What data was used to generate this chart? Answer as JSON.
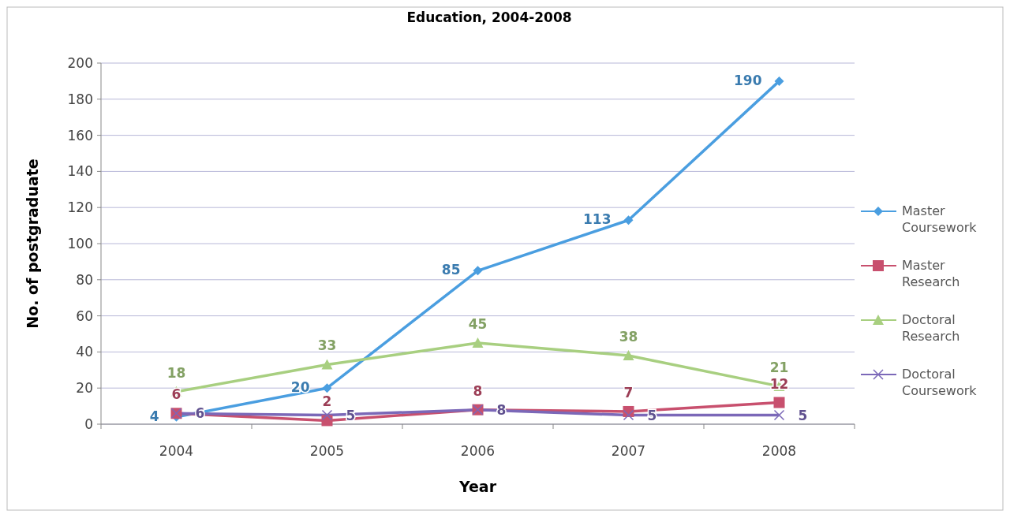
{
  "chart_data": {
    "type": "line",
    "title": "Education, 2004-2008",
    "xlabel": "Year",
    "ylabel": "No. of postgraduate",
    "categories": [
      "2004",
      "2005",
      "2006",
      "2007",
      "2008"
    ],
    "series": [
      {
        "name": "Master Coursework",
        "color": "#4a9ee0",
        "marker": "diamond",
        "values": [
          4,
          20,
          85,
          113,
          190
        ]
      },
      {
        "name": "Master Research",
        "color": "#c8506e",
        "marker": "square",
        "values": [
          6,
          2,
          8,
          7,
          12
        ]
      },
      {
        "name": "Doctoral Research",
        "color": "#a8cf80",
        "marker": "triangle",
        "values": [
          18,
          33,
          45,
          38,
          21
        ]
      },
      {
        "name": "Doctoral Coursework",
        "color": "#7b68b8",
        "marker": "cross",
        "values": [
          6,
          5,
          8,
          5,
          5
        ]
      }
    ],
    "ylim": [
      0,
      200
    ],
    "yticks": [
      0,
      20,
      40,
      60,
      80,
      100,
      120,
      140,
      160,
      180,
      200
    ],
    "grid": "y",
    "legend": "right",
    "data_labels": true
  }
}
